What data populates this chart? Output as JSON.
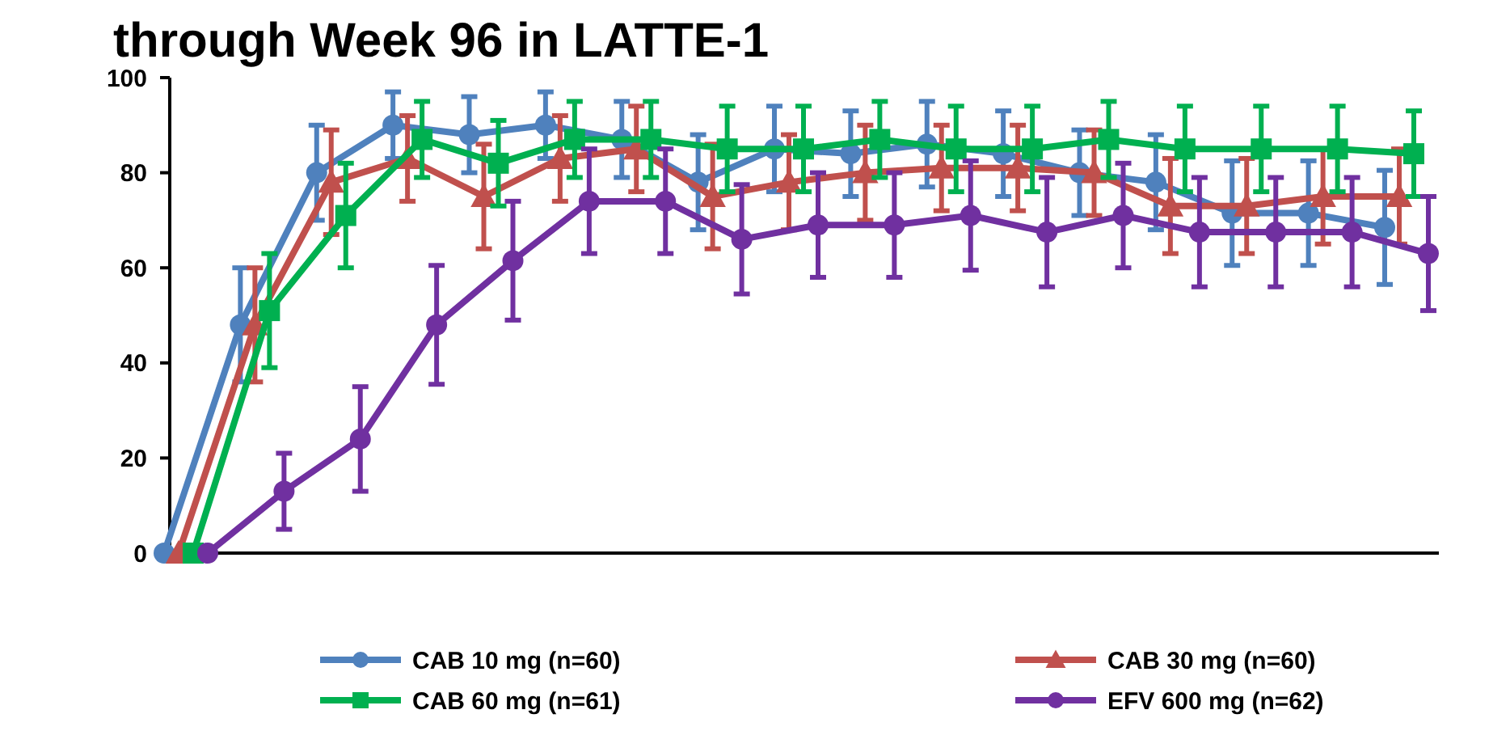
{
  "chart_data": {
    "type": "line",
    "title": "through Week 96 in LATTE-1",
    "categories": [
      null,
      null,
      null,
      null,
      null,
      null,
      null,
      null,
      null,
      null,
      null,
      null,
      null,
      null,
      null,
      null,
      null
    ],
    "ylim": [
      0,
      100
    ],
    "yticks": [
      0,
      20,
      40,
      60,
      80,
      100
    ],
    "legend": "bottom",
    "grid": false,
    "series": [
      {
        "name": "CAB 10 mg (n=60)",
        "color": "#4f81bd",
        "marker": "circle",
        "values": [
          0,
          48,
          80,
          90,
          88,
          90,
          87,
          78,
          85,
          84,
          86,
          84,
          80,
          78,
          71.5,
          71.5,
          68.5
        ],
        "errors": [
          null,
          12,
          10,
          7,
          8,
          7,
          8,
          10,
          9,
          9,
          9,
          9,
          9,
          10,
          11,
          11,
          12
        ]
      },
      {
        "name": "CAB 30 mg (n=60)",
        "color": "#c0504d",
        "marker": "triangle",
        "values": [
          0,
          48,
          78,
          83,
          75,
          83,
          85,
          75,
          78,
          80,
          81,
          81,
          80,
          73,
          73,
          75,
          75
        ],
        "errors": [
          null,
          12,
          11,
          9,
          11,
          9,
          9,
          11,
          10,
          10,
          9,
          9,
          9,
          10,
          10,
          10,
          10
        ]
      },
      {
        "name": "CAB 60 mg (n=61)",
        "color": "#00b050",
        "marker": "square",
        "values": [
          0,
          51,
          71,
          87,
          82,
          87,
          87,
          85,
          85,
          87,
          85,
          85,
          87,
          85,
          85,
          85,
          84
        ],
        "errors": [
          null,
          12,
          11,
          8,
          9,
          8,
          8,
          9,
          9,
          8,
          9,
          9,
          8,
          9,
          9,
          9,
          9
        ]
      },
      {
        "name": "EFV 600 mg (n=62)",
        "color": "#7030a0",
        "marker": "circle",
        "values": [
          0,
          13,
          24,
          48,
          61.5,
          74,
          74,
          66,
          69,
          69,
          71,
          67.5,
          71,
          67.5,
          67.5,
          67.5,
          63
        ],
        "errors": [
          null,
          8,
          11,
          12.5,
          12.5,
          11,
          11,
          11.5,
          11,
          11,
          11.5,
          11.5,
          11,
          11.5,
          11.5,
          11.5,
          12
        ]
      }
    ]
  }
}
